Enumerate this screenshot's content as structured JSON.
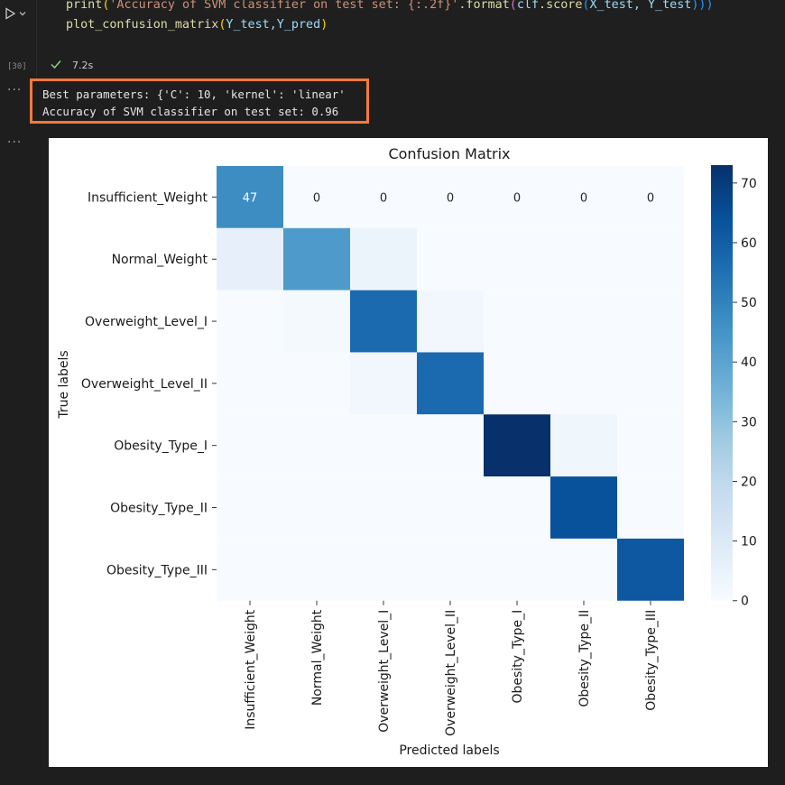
{
  "code": {
    "line1": {
      "fn": "print",
      "open": "(",
      "str": "'Accuracy of SVM classifier on test set: {:.2f}'",
      "dot_format": ".format",
      "open2": "(",
      "obj": "clf",
      "dot_score": ".score",
      "open3": "(",
      "args": "X_test, Y_test",
      "close": ")))"
    },
    "line2": {
      "fn": "plot_confusion_matrix",
      "open": "(",
      "args": "Y_test,Y_pred",
      "close": ")"
    },
    "execution_count": "[30]",
    "status_time": "7.2s"
  },
  "output_text": {
    "line1": "Best parameters: {'C': 10, 'kernel': 'linear'",
    "line2": "Accuracy of SVM classifier on test set: 0.96"
  },
  "chart_data": {
    "type": "heatmap",
    "title": "Confusion Matrix",
    "xlabel": "Predicted labels",
    "ylabel": "True labels",
    "row_labels": [
      "Insufficient_Weight",
      "Normal_Weight",
      "Overweight_Level_I",
      "Overweight_Level_II",
      "Obesity_Type_I",
      "Obesity_Type_II",
      "Obesity_Type_III"
    ],
    "col_labels": [
      "Insufficient_Weight",
      "Normal_Weight",
      "Overweight_Level_I",
      "Overweight_Level_II",
      "Obesity_Type_I",
      "Obesity_Type_II",
      "Obesity_Type_III"
    ],
    "values": [
      [
        47,
        0,
        0,
        0,
        0,
        0,
        0
      ],
      [
        6,
        43,
        4,
        0,
        0,
        0,
        0
      ],
      [
        0,
        1,
        57,
        2,
        0,
        0,
        0
      ],
      [
        0,
        0,
        2,
        57,
        0,
        0,
        0
      ],
      [
        0,
        0,
        0,
        0,
        73,
        3,
        0
      ],
      [
        0,
        0,
        0,
        0,
        0,
        64,
        0
      ],
      [
        0,
        0,
        0,
        0,
        0,
        0,
        62
      ]
    ],
    "annotations_row": 0,
    "colorbar": {
      "min": 0,
      "max": 73,
      "ticks": [
        0,
        10,
        20,
        30,
        40,
        50,
        60,
        70
      ]
    },
    "colormap": [
      "#f7fbff",
      "#deebf7",
      "#c6dbef",
      "#9ecae1",
      "#6baed6",
      "#4292c6",
      "#2171b5",
      "#08519c",
      "#08306b"
    ]
  },
  "colors": {
    "highlight_border": "#f5793a",
    "success_check": "#89d185"
  }
}
